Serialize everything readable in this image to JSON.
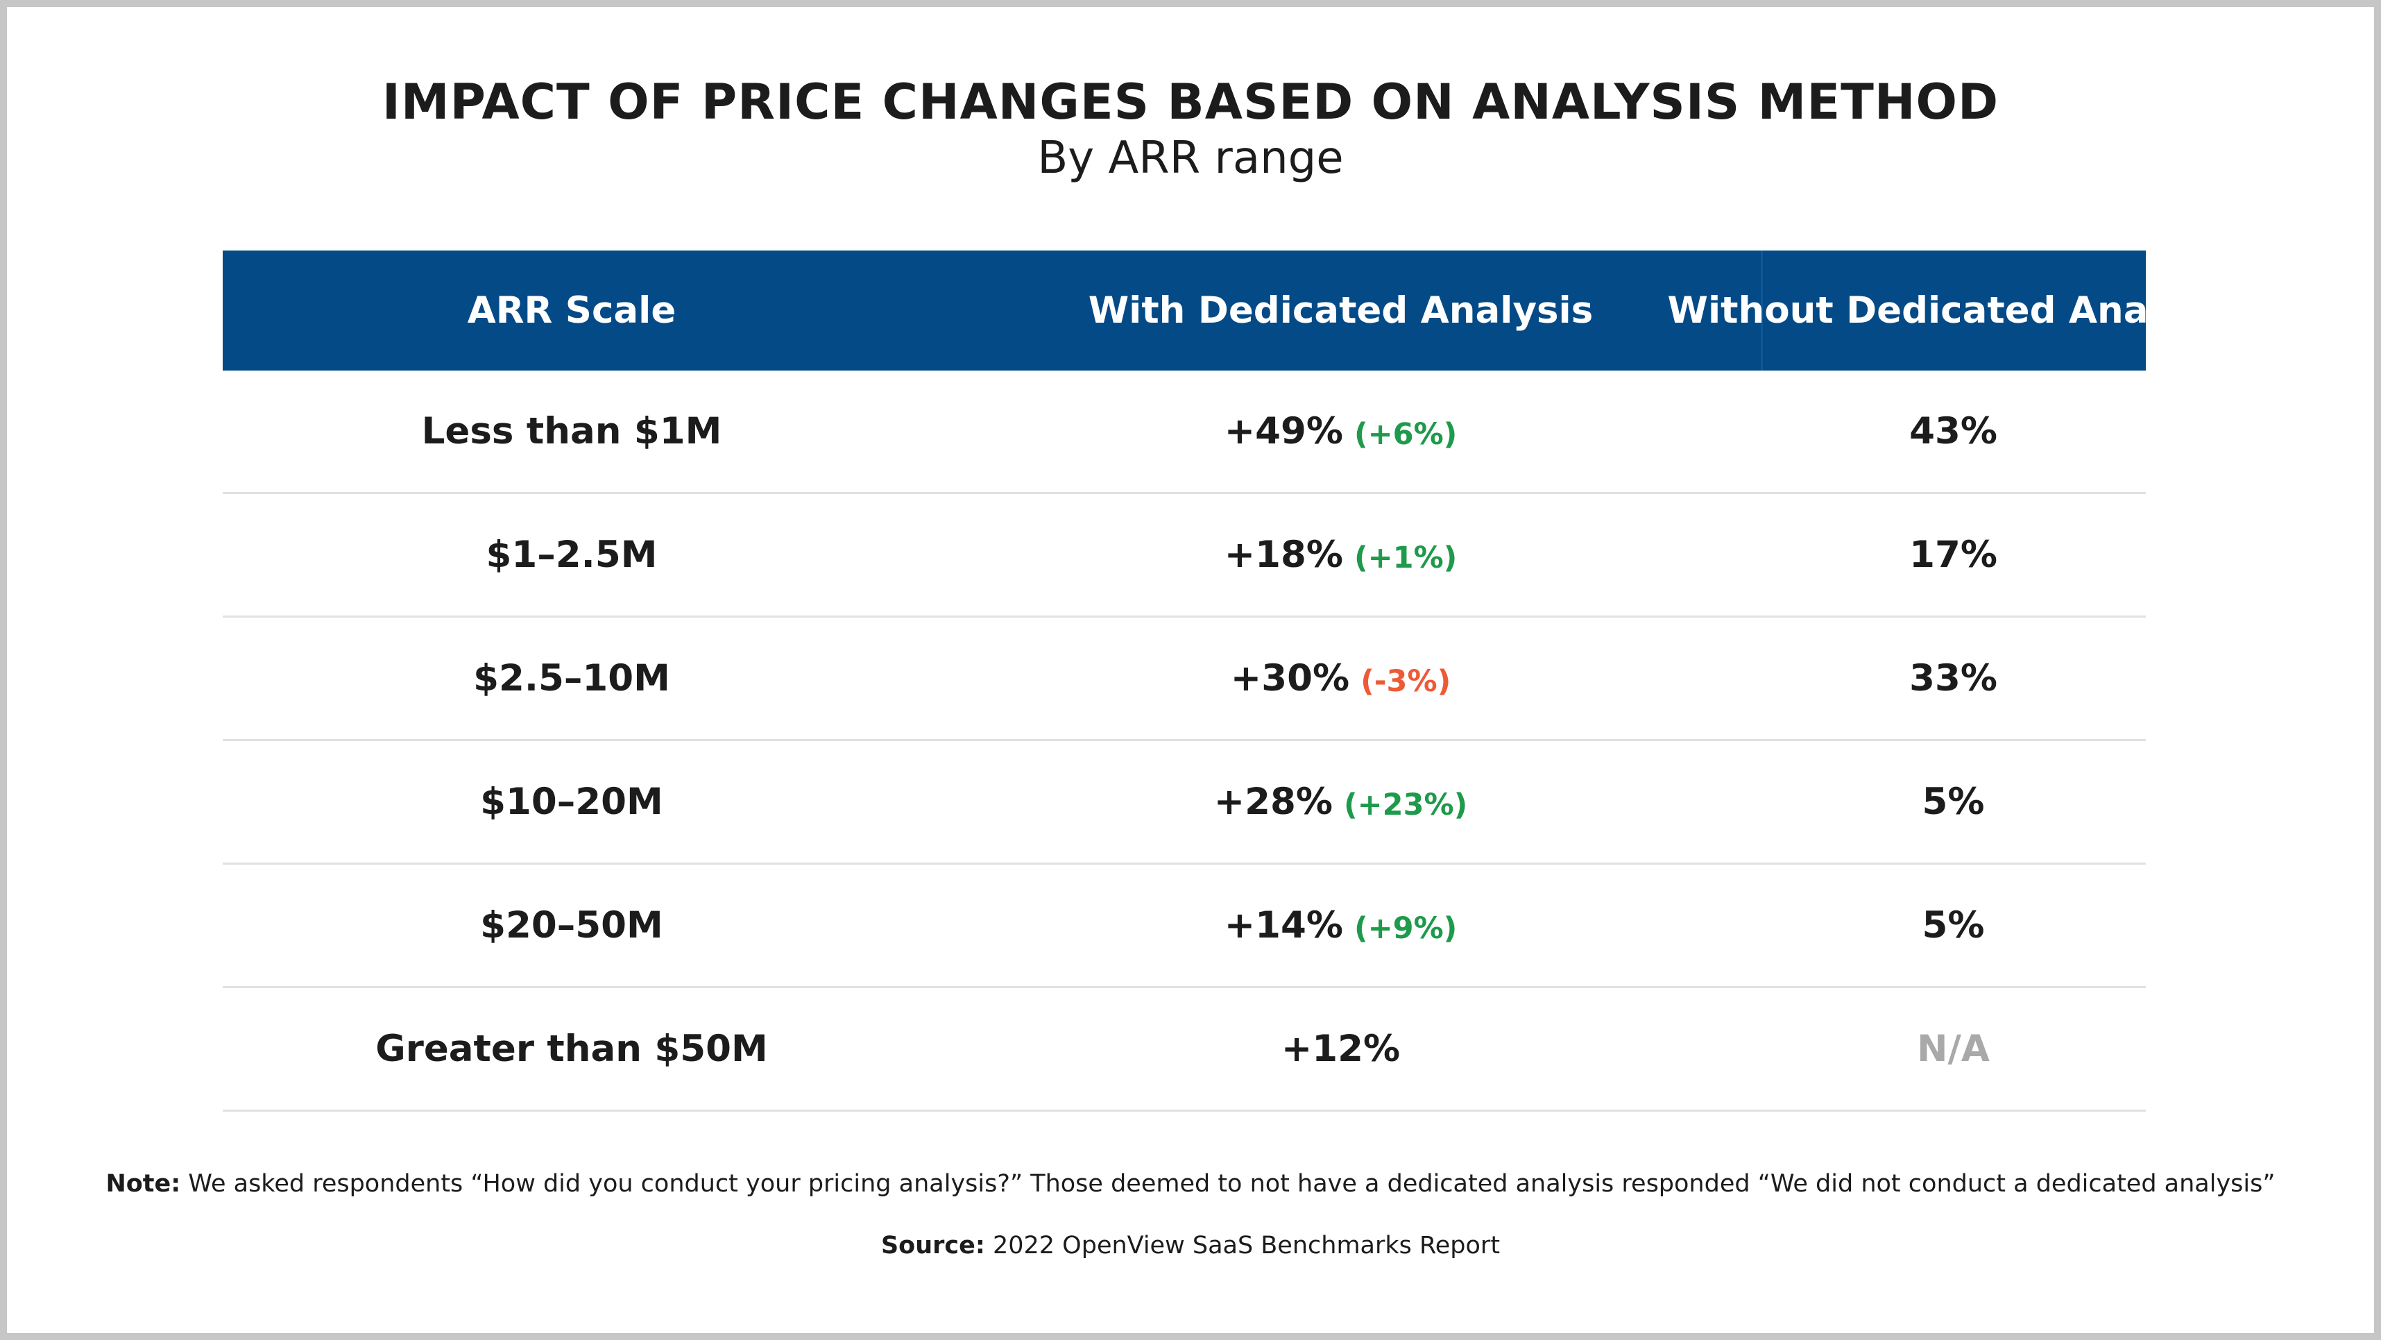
{
  "title": "IMPACT OF PRICE CHANGES BASED ON ANALYSIS METHOD",
  "subtitle": "By ARR range",
  "colors": {
    "header_bg": "#044a87",
    "positive_delta": "#1e9a4b",
    "negative_delta": "#ee5a36",
    "na_text": "#a9a9a9"
  },
  "chart_data": {
    "type": "table",
    "title": "IMPACT OF PRICE CHANGES BASED ON ANALYSIS METHOD",
    "subtitle": "By ARR range",
    "columns": [
      "ARR Scale",
      "With Dedicated Analysis",
      "Without Dedicated Analysis"
    ],
    "rows": [
      {
        "arr_scale": "Less than $1M",
        "with": "+49%",
        "delta": "(+6%)",
        "delta_sign": "up",
        "without": "43%"
      },
      {
        "arr_scale": "$1–2.5M",
        "with": "+18%",
        "delta": "(+1%)",
        "delta_sign": "up",
        "without": "17%"
      },
      {
        "arr_scale": "$2.5–10M",
        "with": "+30%",
        "delta": "(-3%)",
        "delta_sign": "down",
        "without": "33%"
      },
      {
        "arr_scale": "$10–20M",
        "with": "+28%",
        "delta": "(+23%)",
        "delta_sign": "up",
        "without": "5%"
      },
      {
        "arr_scale": "$20–50M",
        "with": "+14%",
        "delta": "(+9%)",
        "delta_sign": "up",
        "without": "5%"
      },
      {
        "arr_scale": "Greater than $50M",
        "with": "+12%",
        "delta": "",
        "delta_sign": "",
        "without": "N/A"
      }
    ]
  },
  "note": {
    "label": "Note:",
    "text": " We asked respondents “How did you conduct your pricing analysis?” Those deemed to not have a dedicated analysis responded “We did not conduct a dedicated analysis”"
  },
  "source": {
    "label": "Source:",
    "text": " 2022 OpenView SaaS Benchmarks Report"
  }
}
